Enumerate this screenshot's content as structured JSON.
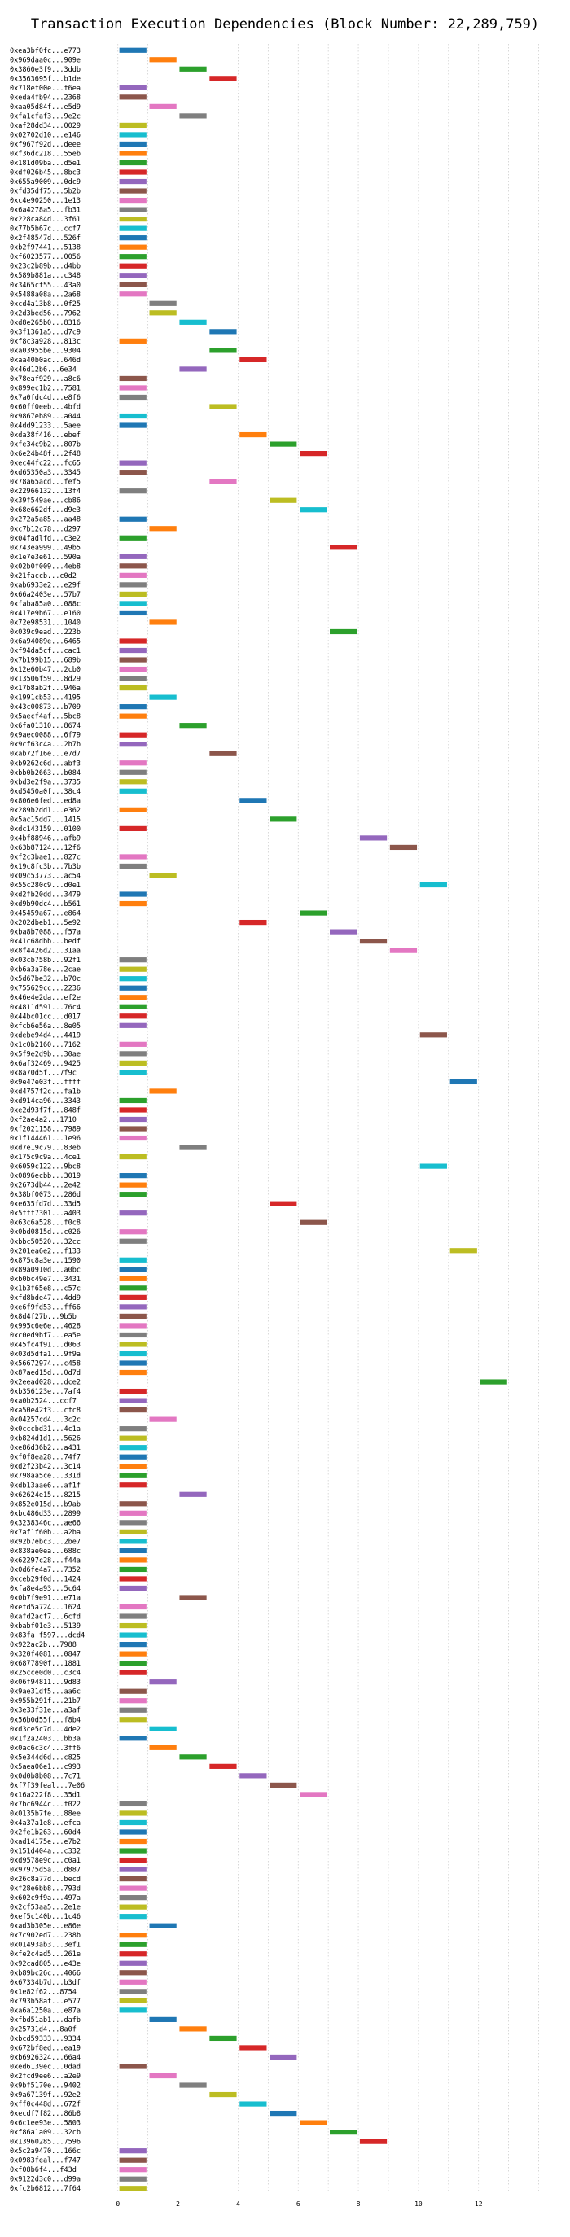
{
  "chart_data": {
    "type": "bar",
    "title": "Transaction Execution Dependencies (Block Number: 22,289,759)",
    "xlabel": "",
    "ylabel": "",
    "xlim": [
      -0.4,
      14.5
    ],
    "xticks": [
      0,
      2,
      4,
      6,
      8,
      10,
      12
    ],
    "grid": "vertical dotted",
    "bar_span": [
      0.05,
      0.95
    ],
    "palette": [
      "#1f77b4",
      "#ff7f0e",
      "#2ca02c",
      "#d62728",
      "#9467bd",
      "#8c564b",
      "#e377c2",
      "#7f7f7f",
      "#bcbd22",
      "#17becf"
    ],
    "transactions": [
      {
        "label": "0xea3bf0fc...e773",
        "level": 0
      },
      {
        "label": "0x969daa0c...909e",
        "level": 1
      },
      {
        "label": "0x3860e3f9...3ddb",
        "level": 2
      },
      {
        "label": "0x3563695f...b1de",
        "level": 3
      },
      {
        "label": "0x718ef00e...f6ea",
        "level": 0
      },
      {
        "label": "0xeda4fb94...2368",
        "level": 0
      },
      {
        "label": "0xaa05d84f...e5d9",
        "level": 1
      },
      {
        "label": "0xfa1cfaf3...9e2c",
        "level": 2
      },
      {
        "label": "0xaf28dd34...0029",
        "level": 0
      },
      {
        "label": "0x02702d10...e146",
        "level": 0
      },
      {
        "label": "0xf967f92d...deee",
        "level": 0
      },
      {
        "label": "0xf36dc218...55eb",
        "level": 0
      },
      {
        "label": "0x181d09ba...d5e1",
        "level": 0
      },
      {
        "label": "0xdf026b45...8bc3",
        "level": 0
      },
      {
        "label": "0x655a9009...0dc9",
        "level": 0
      },
      {
        "label": "0xfd35df75...5b2b",
        "level": 0
      },
      {
        "label": "0xc4e90250...1e13",
        "level": 0
      },
      {
        "label": "0x6a4278a5...fb31",
        "level": 0
      },
      {
        "label": "0x228ca84d...3f61",
        "level": 0
      },
      {
        "label": "0x77b5b67c...ccf7",
        "level": 0
      },
      {
        "label": "0x2f48547d...526f",
        "level": 0
      },
      {
        "label": "0xb2f97441...5138",
        "level": 0
      },
      {
        "label": "0xf6023577...0056",
        "level": 0
      },
      {
        "label": "0x23c2b89b...d4bb",
        "level": 0
      },
      {
        "label": "0x589b881a...c348",
        "level": 0
      },
      {
        "label": "0x3465cf55...43a0",
        "level": 0
      },
      {
        "label": "0x5488a08a...2a68",
        "level": 0
      },
      {
        "label": "0xcd4a13b8...0f25",
        "level": 1
      },
      {
        "label": "0x2d3bed56...7962",
        "level": 1
      },
      {
        "label": "0xd8e265b0...8316",
        "level": 2
      },
      {
        "label": "0x3f1361a5...d7c9",
        "level": 3
      },
      {
        "label": "0xf8c3a928...813c",
        "level": 0
      },
      {
        "label": "0xa03955be...9304",
        "level": 3
      },
      {
        "label": "0xaa40b0ac...646d",
        "level": 4
      },
      {
        "label": "0x46d12b6...6e34",
        "level": 2
      },
      {
        "label": "0x78eaf929...a8c6",
        "level": 0
      },
      {
        "label": "0x899ec1b2...7581",
        "level": 0
      },
      {
        "label": "0x7a0fdc4d...e8f6",
        "level": 0
      },
      {
        "label": "0x60ff0eeb...4bfd",
        "level": 3
      },
      {
        "label": "0x9867eb89...a044",
        "level": 0
      },
      {
        "label": "0x4dd91233...5aee",
        "level": 0
      },
      {
        "label": "0xda38f416...ebef",
        "level": 4
      },
      {
        "label": "0xfe34c9b2...807b",
        "level": 5
      },
      {
        "label": "0x6e24b48f...2f48",
        "level": 6
      },
      {
        "label": "0xec44fc22...fc65",
        "level": 0
      },
      {
        "label": "0xd65350a3...3345",
        "level": 0
      },
      {
        "label": "0x78a65acd...fef5",
        "level": 3
      },
      {
        "label": "0x22966132...13f4",
        "level": 0
      },
      {
        "label": "0x39f549ae...cb86",
        "level": 5
      },
      {
        "label": "0x68e662df...d9e3",
        "level": 6
      },
      {
        "label": "0x272a5a85...aa48",
        "level": 0
      },
      {
        "label": "0xc7b12c78...d297",
        "level": 1
      },
      {
        "label": "0x04fadlfd...c3e2",
        "level": 0
      },
      {
        "label": "0x743ea999...49b5",
        "level": 7
      },
      {
        "label": "0x1e7e3e61...590a",
        "level": 0
      },
      {
        "label": "0x02b0f009...4eb8",
        "level": 0
      },
      {
        "label": "0x21faccb...c0d2",
        "level": 0
      },
      {
        "label": "0xab6933e2...e29f",
        "level": 0
      },
      {
        "label": "0x66a2403e...57b7",
        "level": 0
      },
      {
        "label": "0xfaba85a0...088c",
        "level": 0
      },
      {
        "label": "0x417e9b67...e160",
        "level": 0
      },
      {
        "label": "0x72e98531...1040",
        "level": 1
      },
      {
        "label": "0x039c9ead...223b",
        "level": 7
      },
      {
        "label": "0x6a94089e...6465",
        "level": 0
      },
      {
        "label": "0xf94da5cf...cac1",
        "level": 0
      },
      {
        "label": "0x7b199b15...689b",
        "level": 0
      },
      {
        "label": "0x12e60b47...2cb0",
        "level": 0
      },
      {
        "label": "0x13506f59...8d29",
        "level": 0
      },
      {
        "label": "0x17b8ab2f...946a",
        "level": 0
      },
      {
        "label": "0x1991cb53...4195",
        "level": 1
      },
      {
        "label": "0x43c00873...b709",
        "level": 0
      },
      {
        "label": "0x5aecf4af...5bc8",
        "level": 0
      },
      {
        "label": "0x6fa01310...8674",
        "level": 2
      },
      {
        "label": "0x9aec0088...6f79",
        "level": 0
      },
      {
        "label": "0x9cf63c4a...2b7b",
        "level": 0
      },
      {
        "label": "0xab72f16e...e7d7",
        "level": 3
      },
      {
        "label": "0xb9262c6d...abf3",
        "level": 0
      },
      {
        "label": "0xbb0b2663...b084",
        "level": 0
      },
      {
        "label": "0xbd3e2f9a...3735",
        "level": 0
      },
      {
        "label": "0xd5450a0f...38c4",
        "level": 0
      },
      {
        "label": "0x806e6fed...ed8a",
        "level": 4
      },
      {
        "label": "0x289b2dd1...e362",
        "level": 0
      },
      {
        "label": "0x5ac15dd7...1415",
        "level": 5
      },
      {
        "label": "0xdc143159...0100",
        "level": 0
      },
      {
        "label": "0x4bf88946...afb9",
        "level": 8
      },
      {
        "label": "0x63b87124...12f6",
        "level": 9
      },
      {
        "label": "0xf2c3bae1...827c",
        "level": 0
      },
      {
        "label": "0x19c8fc3b...7b3b",
        "level": 0
      },
      {
        "label": "0x09c53773...ac54",
        "level": 1
      },
      {
        "label": "0x55c280c9...d0e1",
        "level": 10
      },
      {
        "label": "0xd2fb20dd...3479",
        "level": 0
      },
      {
        "label": "0xd9b90dc4...b561",
        "level": 0
      },
      {
        "label": "0x45459a67...e864",
        "level": 6
      },
      {
        "label": "0x202dbeb1...5e92",
        "level": 4
      },
      {
        "label": "0xba8b7088...f57a",
        "level": 7
      },
      {
        "label": "0x41c68dbb...bedf",
        "level": 8
      },
      {
        "label": "0x8f4426d2...31aa",
        "level": 9
      },
      {
        "label": "0x03cb758b...92f1",
        "level": 0
      },
      {
        "label": "0xb6a3a78e...2cae",
        "level": 0
      },
      {
        "label": "0x5d67be32...b70c",
        "level": 0
      },
      {
        "label": "0x755629cc...2236",
        "level": 0
      },
      {
        "label": "0x46e4e2da...ef2e",
        "level": 0
      },
      {
        "label": "0x4811d591...76c4",
        "level": 0
      },
      {
        "label": "0x44bc01cc...d017",
        "level": 0
      },
      {
        "label": "0xfcb6e56a...8e05",
        "level": 0
      },
      {
        "label": "0xdebe94d4...4419",
        "level": 10
      },
      {
        "label": "0x1c0b2160...7162",
        "level": 0
      },
      {
        "label": "0x5f9e2d9b...30ae",
        "level": 0
      },
      {
        "label": "0x6af32469...9425",
        "level": 0
      },
      {
        "label": "0x8a70d5f...7f9c",
        "level": 0
      },
      {
        "label": "0x9e47e03f...ffff",
        "level": 11
      },
      {
        "label": "0xd4757f2c...fa1b",
        "level": 1
      },
      {
        "label": "0xd914ca96...3343",
        "level": 0
      },
      {
        "label": "0xe2d93f7f...848f",
        "level": 0
      },
      {
        "label": "0xf2ae4a2...1710",
        "level": 0
      },
      {
        "label": "0xf2021158...7989",
        "level": 0
      },
      {
        "label": "0x1f144461...1e96",
        "level": 0
      },
      {
        "label": "0xd7e19c79...83eb",
        "level": 2
      },
      {
        "label": "0x175c9c9a...4ce1",
        "level": 0
      },
      {
        "label": "0x6059c122...9bc8",
        "level": 10
      },
      {
        "label": "0x0896ecbb...3019",
        "level": 0
      },
      {
        "label": "0x2673db44...2e42",
        "level": 0
      },
      {
        "label": "0x38bf0073...286d",
        "level": 0
      },
      {
        "label": "0xe635fd7d...33d5",
        "level": 5
      },
      {
        "label": "0x5fff7301...a403",
        "level": 0
      },
      {
        "label": "0x63c6a528...f0c8",
        "level": 6
      },
      {
        "label": "0x0bd0815d...c026",
        "level": 0
      },
      {
        "label": "0xbbc50520...32cc",
        "level": 0
      },
      {
        "label": "0x201ea6e2...f133",
        "level": 11
      },
      {
        "label": "0x875c8a3e...1590",
        "level": 0
      },
      {
        "label": "0x89a0910d...a0bc",
        "level": 0
      },
      {
        "label": "0xb0bc49e7...3431",
        "level": 0
      },
      {
        "label": "0x1b3f65e8...c57c",
        "level": 0
      },
      {
        "label": "0xfd8bde47...4dd9",
        "level": 0
      },
      {
        "label": "0xe6f9fd53...ff66",
        "level": 0
      },
      {
        "label": "0x8d4f27b...9b5b",
        "level": 0
      },
      {
        "label": "0x995c6e6e...4628",
        "level": 0
      },
      {
        "label": "0xc0ed9bf7...ea5e",
        "level": 0
      },
      {
        "label": "0x45fc4f91...d063",
        "level": 0
      },
      {
        "label": "0x03d5dfa1...9f9a",
        "level": 0
      },
      {
        "label": "0x56672974...c458",
        "level": 0
      },
      {
        "label": "0x87aed15d...0d7d",
        "level": 0
      },
      {
        "label": "0x2eead028...dce2",
        "level": 12
      },
      {
        "label": "0xb356123e...7af4",
        "level": 0
      },
      {
        "label": "0xa0b2524...ccf7",
        "level": 0
      },
      {
        "label": "0xa50e42f3...cfc8",
        "level": 0
      },
      {
        "label": "0x04257cd4...3c2c",
        "level": 1
      },
      {
        "label": "0x0cccbd31...4c1a",
        "level": 0
      },
      {
        "label": "0xb824d1d1...5626",
        "level": 0
      },
      {
        "label": "0xe86d36b2...a431",
        "level": 0
      },
      {
        "label": "0xf0f8ea28...74f7",
        "level": 0
      },
      {
        "label": "0xd2f23b42...3c14",
        "level": 0
      },
      {
        "label": "0x798aa5ce...331d",
        "level": 0
      },
      {
        "label": "0xdb13aae6...af1f",
        "level": 0
      },
      {
        "label": "0x62624e15...8215",
        "level": 2
      },
      {
        "label": "0x852e015d...b9ab",
        "level": 0
      },
      {
        "label": "0xbc486d33...2899",
        "level": 0
      },
      {
        "label": "0x3238346c...ae66",
        "level": 0
      },
      {
        "label": "0x7af1f60b...a2ba",
        "level": 0
      },
      {
        "label": "0x92b7ebc3...2be7",
        "level": 0
      },
      {
        "label": "0x838ae0ea...688c",
        "level": 0
      },
      {
        "label": "0x62297c28...f44a",
        "level": 0
      },
      {
        "label": "0x0d6fe4a7...7352",
        "level": 0
      },
      {
        "label": "0xceb29f0d...1424",
        "level": 0
      },
      {
        "label": "0xfa8e4a93...5c64",
        "level": 0
      },
      {
        "label": "0x0b7f9e91...e71a",
        "level": 2
      },
      {
        "label": "0xefd5a724...1624",
        "level": 0
      },
      {
        "label": "0xafd2acf7...6cfd",
        "level": 0
      },
      {
        "label": "0xbabf01e3...5139",
        "level": 0
      },
      {
        "label": "0x83fa f597...dcd4",
        "level": 0
      },
      {
        "label": "0x922ac2b...7988",
        "level": 0
      },
      {
        "label": "0x320f4081...0847",
        "level": 0
      },
      {
        "label": "0x6877890f...1881",
        "level": 0
      },
      {
        "label": "0x25cce0d0...c3c4",
        "level": 0
      },
      {
        "label": "0x06f94811...9d83",
        "level": 1
      },
      {
        "label": "0x9ae31df5...aa6c",
        "level": 0
      },
      {
        "label": "0x955b291f...21b7",
        "level": 0
      },
      {
        "label": "0x3e33f31e...a3af",
        "level": 0
      },
      {
        "label": "0x56b0d55f...f8b4",
        "level": 0
      },
      {
        "label": "0xd3ce5c7d...4de2",
        "level": 1
      },
      {
        "label": "0x1f2a2403...bb3a",
        "level": 0
      },
      {
        "label": "0x0ac6c3c4...3ff6",
        "level": 1
      },
      {
        "label": "0x5e344d6d...c825",
        "level": 2
      },
      {
        "label": "0x5aea06e1...c993",
        "level": 3
      },
      {
        "label": "0x0d0b8b08...7c71",
        "level": 4
      },
      {
        "label": "0xf7f39feal...7e06",
        "level": 5
      },
      {
        "label": "0x16a222f8...35d1",
        "level": 6
      },
      {
        "label": "0x7bc6944c...f022",
        "level": 0
      },
      {
        "label": "0x0135b7fe...88ee",
        "level": 0
      },
      {
        "label": "0x4a37a1e8...efca",
        "level": 0
      },
      {
        "label": "0x2fe1b263...60d4",
        "level": 0
      },
      {
        "label": "0xad14175e...e7b2",
        "level": 0
      },
      {
        "label": "0x151d404a...c332",
        "level": 0
      },
      {
        "label": "0xd9578e9c...c0a1",
        "level": 0
      },
      {
        "label": "0x97975d5a...d887",
        "level": 0
      },
      {
        "label": "0x26c8a77d...becd",
        "level": 0
      },
      {
        "label": "0xf28e6bb8...793d",
        "level": 0
      },
      {
        "label": "0x602c9f9a...497a",
        "level": 0
      },
      {
        "label": "0x2cf53aa5...2e1e",
        "level": 0
      },
      {
        "label": "0xef5c140b...1c46",
        "level": 0
      },
      {
        "label": "0xad3b305e...e86e",
        "level": 1
      },
      {
        "label": "0x7c902ed7...238b",
        "level": 0
      },
      {
        "label": "0x01493ab3...3ef1",
        "level": 0
      },
      {
        "label": "0xfe2c4ad5...261e",
        "level": 0
      },
      {
        "label": "0x92cad805...e43e",
        "level": 0
      },
      {
        "label": "0xb89bc26c...4066",
        "level": 0
      },
      {
        "label": "0x67334b7d...b3df",
        "level": 0
      },
      {
        "label": "0x1e82f62...8754",
        "level": 0
      },
      {
        "label": "0x793b58af...e577",
        "level": 0
      },
      {
        "label": "0xa6a1250a...e87a",
        "level": 0
      },
      {
        "label": "0xfbd51ab1...dafb",
        "level": 1
      },
      {
        "label": "0x25731d4...8a0f",
        "level": 2
      },
      {
        "label": "0xbcd59333...9334",
        "level": 3
      },
      {
        "label": "0x672bf8ed...ea19",
        "level": 4
      },
      {
        "label": "0xb6926324...66a4",
        "level": 5
      },
      {
        "label": "0xed6139ec...0dad",
        "level": 0
      },
      {
        "label": "0x2fcd9ee6...a2e9",
        "level": 1
      },
      {
        "label": "0x9bf5170e...9402",
        "level": 2
      },
      {
        "label": "0x9a67139f...92e2",
        "level": 3
      },
      {
        "label": "0xff0c448d...672f",
        "level": 4
      },
      {
        "label": "0xecdf7f82...86b8",
        "level": 5
      },
      {
        "label": "0x6c1ee93e...5803",
        "level": 6
      },
      {
        "label": "0xf86a1a09...32cb",
        "level": 7
      },
      {
        "label": "0x13960285...7596",
        "level": 8
      },
      {
        "label": "0x5c2a9470...166c",
        "level": 0
      },
      {
        "label": "0x0983feal...f747",
        "level": 0
      },
      {
        "label": "0xf08b6f4...f43d",
        "level": 0
      },
      {
        "label": "0x9122d3c0...d99a",
        "level": 0
      },
      {
        "label": "0xfc2b6812...7f64",
        "level": 0
      }
    ]
  }
}
